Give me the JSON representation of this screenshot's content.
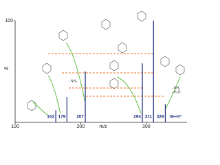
{
  "chart_data": {
    "type": "stem",
    "x_label": "m/z",
    "y_label": "%",
    "x": [
      162,
      179,
      207,
      294,
      311,
      329
    ],
    "values": [
      12,
      25,
      50,
      58,
      100,
      18
    ],
    "color": "#1a2a80",
    "xlim": [
      100,
      360
    ],
    "xticks": [
      100,
      200,
      300
    ],
    "ylim": [
      0,
      100
    ],
    "yticks": [
      100
    ],
    "annotations": [
      "- NH₃",
      "- NH₃",
      "- H₂O",
      "M+H⁺"
    ]
  }
}
